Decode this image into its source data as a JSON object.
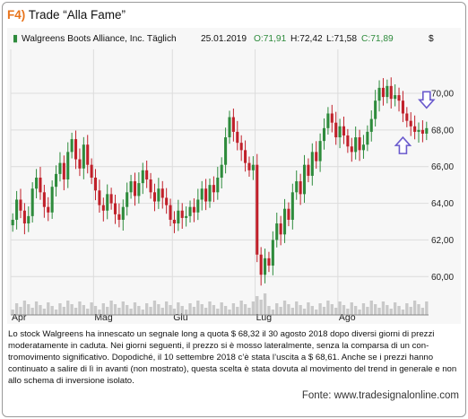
{
  "header": {
    "fig_label": "F4)",
    "title": "Trade “Alla Fame”"
  },
  "chart_data": {
    "type": "candlestick",
    "instrument": "Walgreens Boots Alliance, Inc. Täglich",
    "date": "25.01.2019",
    "ohlc_labels": {
      "open": "O:71,91",
      "high": "H:72,42",
      "low": "L:71,58",
      "close": "C:71,89"
    },
    "currency_label": "$",
    "ylim": [
      58.3,
      72.4
    ],
    "ytick_values": [
      60,
      62,
      64,
      66,
      68,
      70
    ],
    "yticks": [
      "60,00",
      "62,00",
      "64,00",
      "66,00",
      "68,00",
      "70,00"
    ],
    "months": [
      {
        "label": "Apr",
        "index": 0
      },
      {
        "label": "Mag",
        "index": 21
      },
      {
        "label": "Giu",
        "index": 41
      },
      {
        "label": "Lug",
        "index": 62
      },
      {
        "label": "Ago",
        "index": 83
      }
    ],
    "n_bars": 106,
    "closes": [
      63.1,
      64.2,
      63.6,
      62.9,
      63.3,
      64.8,
      65.4,
      64.6,
      63.8,
      63.5,
      64.9,
      65.6,
      66.2,
      65.3,
      66.8,
      67.5,
      66.4,
      65.9,
      67.2,
      66.1,
      65.4,
      64.7,
      63.9,
      63.6,
      64.5,
      64.0,
      63.4,
      63.1,
      63.8,
      64.6,
      65.2,
      64.4,
      65.1,
      65.8,
      65.3,
      64.6,
      64.1,
      64.8,
      64.3,
      63.9,
      63.1,
      62.9,
      63.6,
      63.2,
      63.3,
      63.8,
      63.5,
      64.2,
      64.8,
      64.1,
      65.0,
      64.6,
      65.4,
      66.1,
      67.6,
      68.7,
      67.9,
      67.3,
      66.9,
      66.2,
      65.8,
      66.1,
      61.2,
      60.1,
      61.0,
      60.6,
      62.0,
      62.9,
      62.3,
      63.7,
      63.1,
      64.6,
      65.2,
      64.5,
      66.1,
      65.5,
      66.8,
      66.3,
      67.4,
      68.1,
      68.9,
      68.4,
      67.6,
      68.2,
      67.7,
      67.1,
      66.8,
      67.6,
      66.9,
      67.2,
      67.9,
      68.6,
      69.6,
      70.3,
      69.8,
      70.4,
      69.7,
      69.9,
      69.6,
      68.9,
      68.5,
      68.2,
      67.9,
      68.0,
      67.8,
      68.1
    ],
    "arrows": [
      {
        "index": 105,
        "value": 69.4,
        "direction": "down"
      },
      {
        "index": 99,
        "value": 67.4,
        "direction": "up"
      }
    ]
  },
  "caption": "Lo stock Walgreens ha innescato un segnale long a quota $ 68,32 il 30 agosto 2018 dopo diversi giorni di prezzi moderatamente in caduta. Nei giorni seguenti, il prezzo si è mosso lateralmente, senza la comparsa di un con­tromovimento significativo. Dopodiché, il 10 settembre 2018 c’è stata l’uscita a $ 68,61. Anche se i prezzi hanno continuato a salire di lì in avanti (non mostrato), questa scelta è stata dovuta al movimento del trend in generale e non allo schema di inversione isolato.",
  "source": "Fonte: www.tradesignalonline.com",
  "colors": {
    "up": "#2e8b3c",
    "down": "#c0202a",
    "header": "#e8731a",
    "volume": "#c9c9c9",
    "arrow": "#6a5acd"
  }
}
